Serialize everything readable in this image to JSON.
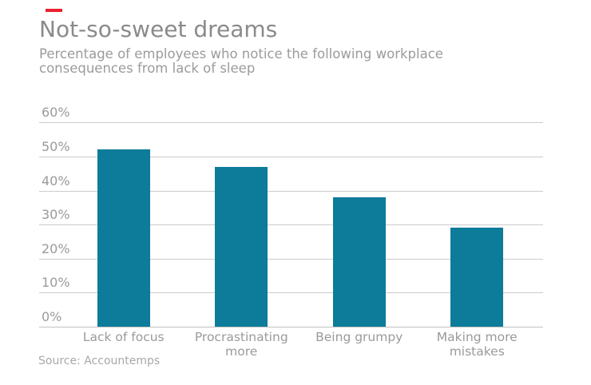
{
  "brand": {
    "dash_color": "#eb212e"
  },
  "chart_data": {
    "type": "bar",
    "title": "Not-so-sweet dreams",
    "subtitle": "Percentage of employees who notice the following workplace consequences from lack of sleep",
    "categories": [
      "Lack of focus",
      "Procrastinating more",
      "Being grumpy",
      "Making more mistakes"
    ],
    "values": [
      52,
      47,
      38,
      29
    ],
    "unit": "%",
    "xlabel": "",
    "ylabel": "",
    "ylim": [
      0,
      60
    ],
    "ytick_step": 10,
    "ytick_labels": [
      "0%",
      "10%",
      "20%",
      "30%",
      "40%",
      "50%",
      "60%"
    ],
    "grid": true,
    "legend": false,
    "bar_color": "#0d7b9a",
    "gridline_color": "#cbcbcb",
    "axis_color": "#c2c2c2",
    "title_color": "#8a8a8a",
    "text_color": "#9a9a9a",
    "source": "Source: Accountemps"
  }
}
